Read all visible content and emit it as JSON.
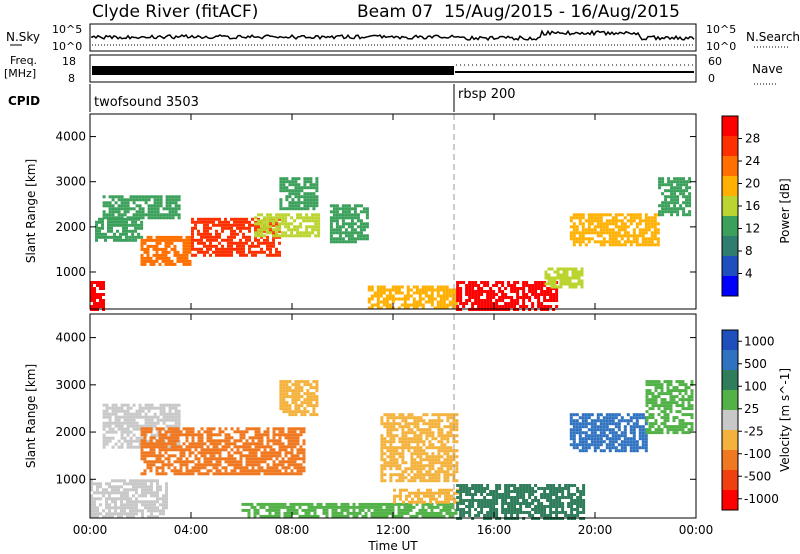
{
  "header": {
    "station": "Clyde River (fitACF)",
    "beam_and_dates": "Beam 07  15/Aug/2015 - 16/Aug/2015"
  },
  "param_panels": {
    "nsky_label": "N.Sky",
    "nsky_left_top": "10^5",
    "nsky_left_bottom": "10^0",
    "nsky_right_top": "10^5",
    "nsky_right_bottom": "10^0",
    "nsearch_label": "N.Search",
    "freq_label_1": "Freq.",
    "freq_label_2": "[MHz]",
    "freq_left_top": "18",
    "freq_left_bottom": "8",
    "nave_right_top": "60",
    "nave_right_bottom": "0",
    "nave_label": "Nave",
    "cpid_label": "CPID",
    "cpid_1": "twofsound 3503",
    "cpid_2": "rbsp 200"
  },
  "colors": {
    "power_scale": [
      "#0000ff",
      "#1f4fbf",
      "#2e7d6e",
      "#3aa05a",
      "#bcd430",
      "#ffb000",
      "#ff7000",
      "#ff3000",
      "#ff0000"
    ],
    "velocity_scale": [
      "#1e4fbd",
      "#2f72c0",
      "#2f7d5a",
      "#52b248",
      "#c8c8c8",
      "#f4b23c",
      "#f07820",
      "#f04010",
      "#ff0000"
    ]
  },
  "chart_data": [
    {
      "type": "heatmap",
      "title": "",
      "ylabel": "Slant Range [km]",
      "xlabel": "",
      "ylim": [
        180,
        4500
      ],
      "xlim": [
        0,
        24
      ],
      "x_ticks": [
        "00:00",
        "04:00",
        "08:00",
        "12:00",
        "16:00",
        "20:00",
        "00:00"
      ],
      "y_ticks": [
        1000,
        2000,
        3000,
        4000
      ],
      "colorbar": {
        "label": "Power [dB]",
        "ticks": [
          "4",
          "8",
          "12",
          "16",
          "20",
          "24",
          "28"
        ],
        "range": [
          0,
          30
        ]
      },
      "regions": [
        {
          "t0": 0.0,
          "t1": 0.5,
          "r0": 200,
          "r1": 800,
          "value": 29
        },
        {
          "t0": 0.2,
          "t1": 2.0,
          "r0": 1700,
          "r1": 2200,
          "value": 12
        },
        {
          "t0": 0.5,
          "t1": 3.5,
          "r0": 2200,
          "r1": 2700,
          "value": 10
        },
        {
          "t0": 2.0,
          "t1": 4.0,
          "r0": 1200,
          "r1": 1800,
          "value": 20
        },
        {
          "t0": 4.0,
          "t1": 7.5,
          "r0": 1400,
          "r1": 2200,
          "value": 24
        },
        {
          "t0": 6.5,
          "t1": 9.0,
          "r0": 1800,
          "r1": 2300,
          "value": 14
        },
        {
          "t0": 7.5,
          "t1": 9.0,
          "r0": 2400,
          "r1": 3100,
          "value": 10
        },
        {
          "t0": 9.5,
          "t1": 11.0,
          "r0": 1700,
          "r1": 2500,
          "value": 12
        },
        {
          "t0": 11.0,
          "t1": 14.5,
          "r0": 200,
          "r1": 700,
          "value": 18
        },
        {
          "t0": 14.5,
          "t1": 18.5,
          "r0": 200,
          "r1": 800,
          "value": 30
        },
        {
          "t0": 18.0,
          "t1": 19.5,
          "r0": 700,
          "r1": 1100,
          "value": 14
        },
        {
          "t0": 19.0,
          "t1": 22.5,
          "r0": 1600,
          "r1": 2300,
          "value": 18
        },
        {
          "t0": 22.5,
          "t1": 23.8,
          "r0": 2300,
          "r1": 3100,
          "value": 10
        }
      ]
    },
    {
      "type": "heatmap",
      "title": "",
      "ylabel": "Slant Range [km]",
      "xlabel": "Time UT",
      "ylim": [
        180,
        4500
      ],
      "xlim": [
        0,
        24
      ],
      "x_ticks": [
        "00:00",
        "04:00",
        "08:00",
        "12:00",
        "16:00",
        "20:00",
        "00:00"
      ],
      "y_ticks": [
        1000,
        2000,
        3000,
        4000
      ],
      "colorbar": {
        "label": "Velocity [m s^-1]",
        "ticks": [
          "1000",
          "500",
          "100",
          "25",
          "-25",
          "-100",
          "-500",
          "-1000"
        ]
      },
      "regions": [
        {
          "t0": 0.0,
          "t1": 3.0,
          "r0": 200,
          "r1": 1000,
          "value": 0
        },
        {
          "t0": 0.5,
          "t1": 3.5,
          "r0": 1700,
          "r1": 2600,
          "value": 0
        },
        {
          "t0": 2.0,
          "t1": 8.5,
          "r0": 1100,
          "r1": 2100,
          "value": -120
        },
        {
          "t0": 7.5,
          "t1": 9.0,
          "r0": 2400,
          "r1": 3100,
          "value": -100
        },
        {
          "t0": 11.5,
          "t1": 14.5,
          "r0": 1000,
          "r1": 2400,
          "value": -100
        },
        {
          "t0": 6.0,
          "t1": 14.5,
          "r0": 200,
          "r1": 500,
          "value": 60
        },
        {
          "t0": 12.0,
          "t1": 14.5,
          "r0": 500,
          "r1": 800,
          "value": -80
        },
        {
          "t0": 14.5,
          "t1": 19.5,
          "r0": 200,
          "r1": 900,
          "value": 120
        },
        {
          "t0": 19.0,
          "t1": 22.0,
          "r0": 1600,
          "r1": 2400,
          "value": 700
        },
        {
          "t0": 22.0,
          "t1": 23.8,
          "r0": 2000,
          "r1": 3100,
          "value": 60
        }
      ]
    }
  ]
}
